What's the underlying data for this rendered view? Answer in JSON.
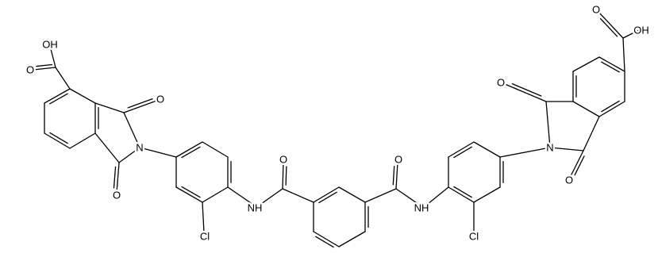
{
  "atoms": [
    {
      "label": "OH"
    },
    {
      "label": "O"
    },
    {
      "label": "O"
    },
    {
      "label": "N"
    },
    {
      "label": "O"
    },
    {
      "label": "Cl"
    },
    {
      "label": "NH"
    },
    {
      "label": "O"
    },
    {
      "label": "O"
    },
    {
      "label": "NH"
    },
    {
      "label": "Cl"
    },
    {
      "label": "N"
    },
    {
      "label": "O"
    },
    {
      "label": "O"
    },
    {
      "label": "OH"
    },
    {
      "label": "O"
    }
  ]
}
